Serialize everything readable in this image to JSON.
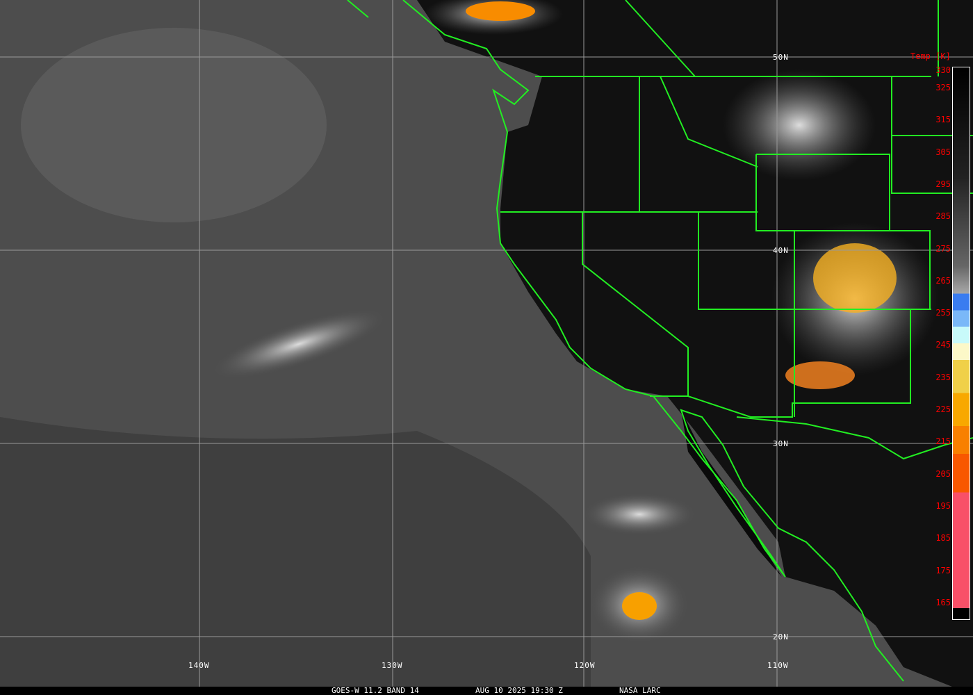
{
  "footer": {
    "product": "GOES-W 11.2 BAND 14",
    "datetime": "AUG 10 2025 19:30 Z",
    "credit": "NASA LARC"
  },
  "latitude_labels": [
    "50N",
    "40N",
    "30N",
    "20N"
  ],
  "longitude_labels": [
    "140W",
    "130W",
    "120W",
    "110W"
  ],
  "colorbar": {
    "title": "Temp [K]",
    "ticks": [
      "330",
      "325",
      "315",
      "305",
      "295",
      "285",
      "275",
      "265",
      "255",
      "245",
      "235",
      "225",
      "215",
      "205",
      "195",
      "185",
      "175",
      "165"
    ],
    "colors": {
      "warm_gradient_top": "#000000",
      "warm_gradient_bottom": "#a8a8a8",
      "blue": "#3a7cf0",
      "light_blue": "#7ab8f8",
      "cyan": "#c8fafa",
      "pale_yellow": "#fcf8c8",
      "yellow": "#f0d048",
      "orange": "#f8a800",
      "dark_orange": "#f88000",
      "red_orange": "#f85800",
      "pink": "#f85068",
      "cold_end": "#000000"
    }
  },
  "map_colors": {
    "borders": "#22ee22",
    "grid": "#9a9a9a",
    "tick_text": "#ff0000"
  }
}
